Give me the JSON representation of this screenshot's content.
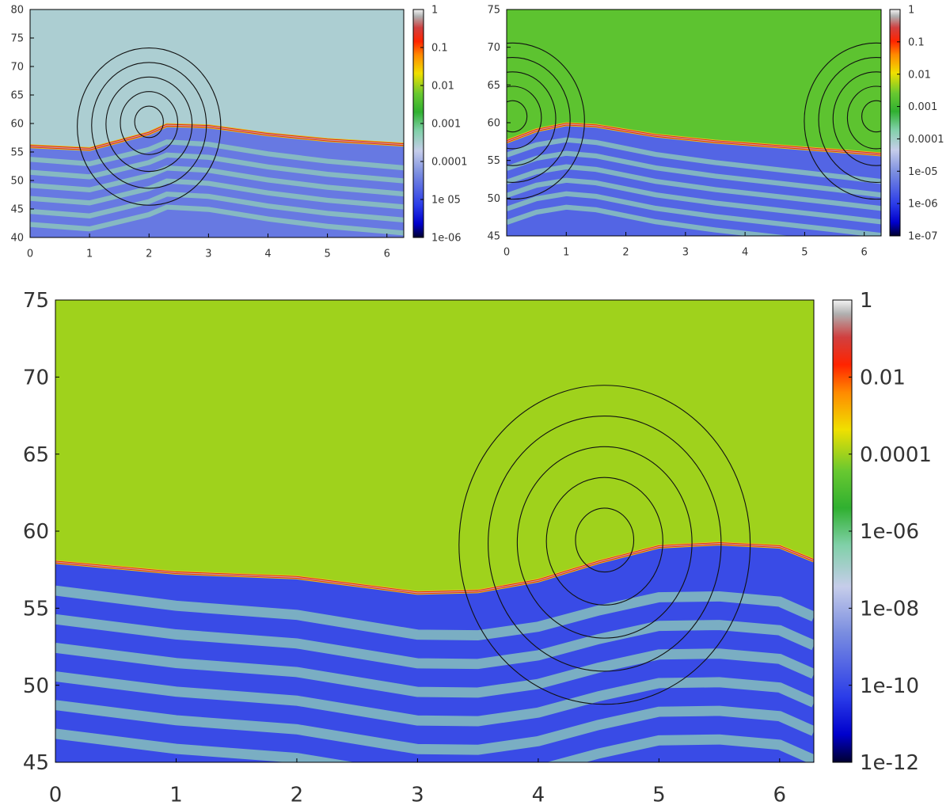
{
  "chart_data": [
    {
      "type": "heatmap",
      "title": "",
      "xlabel": "",
      "ylabel": "",
      "xlim": [
        0,
        6.2832
      ],
      "ylim": [
        40,
        80
      ],
      "x_ticks": [
        "0",
        "1",
        "2",
        "3",
        "4",
        "5",
        "6"
      ],
      "y_ticks": [
        "40",
        "45",
        "50",
        "55",
        "60",
        "65",
        "70",
        "75",
        "80"
      ],
      "colorbar": {
        "scale": "log",
        "range": [
          1e-06,
          1
        ],
        "tick_labels": [
          "1",
          "0.1",
          "0.01",
          "0.001",
          "0.0001",
          "1e 05",
          "1e-06"
        ]
      },
      "interface": {
        "x": [
          0,
          1.0,
          2.0,
          2.3,
          3.0,
          4.0,
          5.0,
          6.2832
        ],
        "y": [
          56.0,
          55.5,
          58.3,
          59.7,
          59.5,
          58.1,
          57.1,
          56.3
        ]
      },
      "vortex_center": {
        "x": 2.0,
        "y": 60.5
      },
      "upper_region_level": 0.0003,
      "lower_region_level": 3e-05
    },
    {
      "type": "heatmap",
      "title": "",
      "xlabel": "",
      "ylabel": "",
      "xlim": [
        0,
        6.2832
      ],
      "ylim": [
        45,
        75
      ],
      "x_ticks": [
        "0",
        "1",
        "2",
        "3",
        "4",
        "5",
        "6"
      ],
      "y_ticks": [
        "45",
        "50",
        "55",
        "60",
        "65",
        "70",
        "75"
      ],
      "colorbar": {
        "scale": "log",
        "range": [
          1e-07,
          1
        ],
        "tick_labels": [
          "1",
          "0.1",
          "0.01",
          "0.001",
          "0.0001",
          "1e-05",
          "1e-06",
          "1e-07"
        ]
      },
      "interface": {
        "x": [
          0,
          0.5,
          1.0,
          1.5,
          2.5,
          3.5,
          4.5,
          5.5,
          6.2832
        ],
        "y": [
          57.5,
          59.0,
          59.8,
          59.6,
          58.3,
          57.5,
          56.9,
          56.3,
          55.8
        ]
      },
      "vortex_centers": [
        {
          "x": 0.1,
          "y": 61.0
        },
        {
          "x": 6.2,
          "y": 61.0
        }
      ],
      "upper_region_level": 0.002,
      "lower_region_level": 3e-06
    },
    {
      "type": "heatmap",
      "title": "",
      "xlabel": "",
      "ylabel": "",
      "xlim": [
        0,
        6.2832
      ],
      "ylim": [
        45,
        75
      ],
      "x_ticks": [
        "0",
        "1",
        "2",
        "3",
        "4",
        "5",
        "6"
      ],
      "y_ticks": [
        "45",
        "50",
        "55",
        "60",
        "65",
        "70",
        "75"
      ],
      "colorbar": {
        "scale": "log",
        "range": [
          1e-12,
          1
        ],
        "tick_labels": [
          "1",
          "0.01",
          "0.0001",
          "1e-06",
          "1e-08",
          "1e-10",
          "1e-12"
        ]
      },
      "interface": {
        "x": [
          0,
          1.0,
          2.0,
          3.0,
          3.5,
          4.0,
          4.5,
          5.0,
          5.5,
          6.0,
          6.2832
        ],
        "y": [
          58.0,
          57.3,
          57.0,
          56.0,
          56.1,
          56.8,
          58.0,
          59.0,
          59.2,
          59.0,
          58.1
        ]
      },
      "vortex_center": {
        "x": 4.55,
        "y": 59.5
      },
      "upper_region_level": 0.0001,
      "lower_region_level": 1e-10
    }
  ]
}
